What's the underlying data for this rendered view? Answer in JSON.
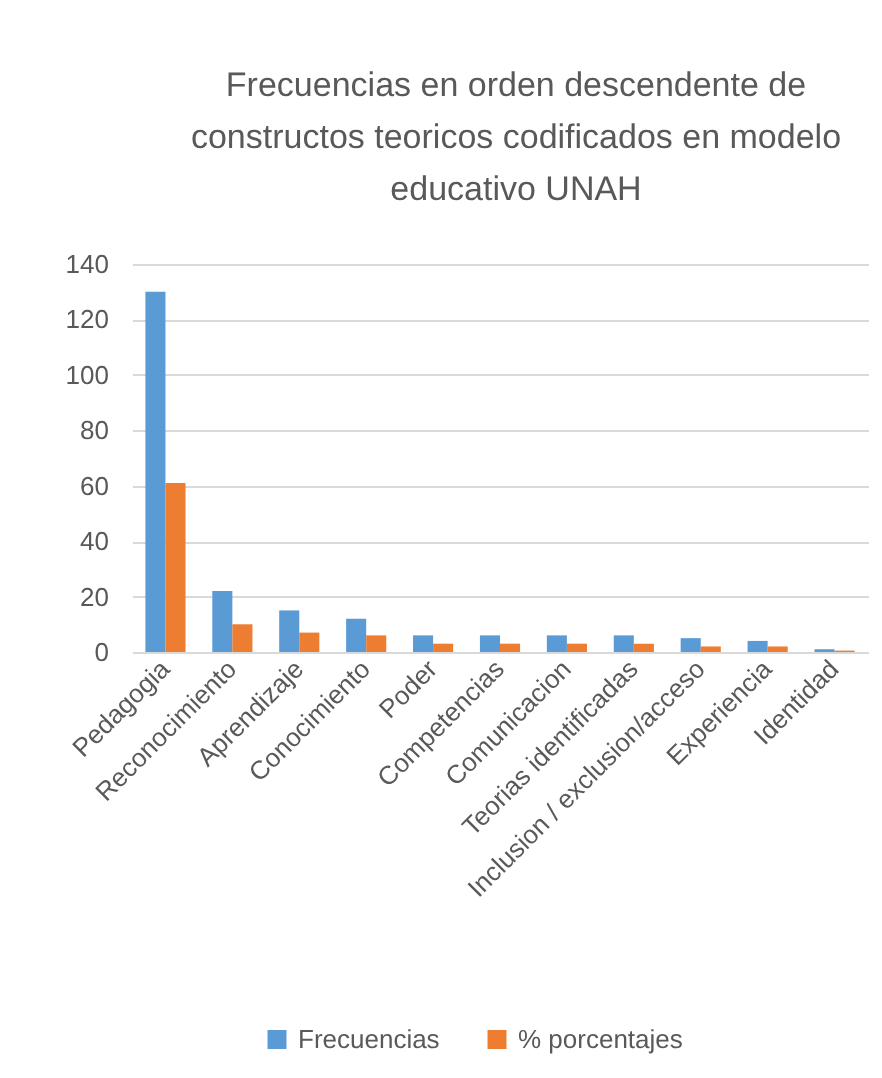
{
  "chart_data": {
    "type": "bar",
    "title": "Frecuencias en orden descendente de constructos teoricos codificados en modelo educativo UNAH",
    "categories": [
      "Pedagogia",
      "Reconocimiento",
      "Aprendizaje",
      "Conocimiento",
      "Poder",
      "Competencias",
      "Comunicacion",
      "Teorias identificadas",
      "Inclusion / exclusion/acceso",
      "Experiencia",
      "Identidad"
    ],
    "series": [
      {
        "name": "Frecuencias",
        "color": "#5b9bd5",
        "values": [
          130,
          22,
          15,
          12,
          6,
          6,
          6,
          6,
          5,
          4,
          1
        ]
      },
      {
        "name": "% porcentajes",
        "color": "#ed7d31",
        "values": [
          61,
          10,
          7,
          6,
          3,
          3,
          3,
          3,
          2,
          2,
          0.5
        ]
      }
    ],
    "ylim": [
      0,
      140
    ],
    "yticks": [
      0,
      20,
      40,
      60,
      80,
      100,
      120,
      140
    ],
    "grid": "y",
    "legend": "bottom"
  }
}
